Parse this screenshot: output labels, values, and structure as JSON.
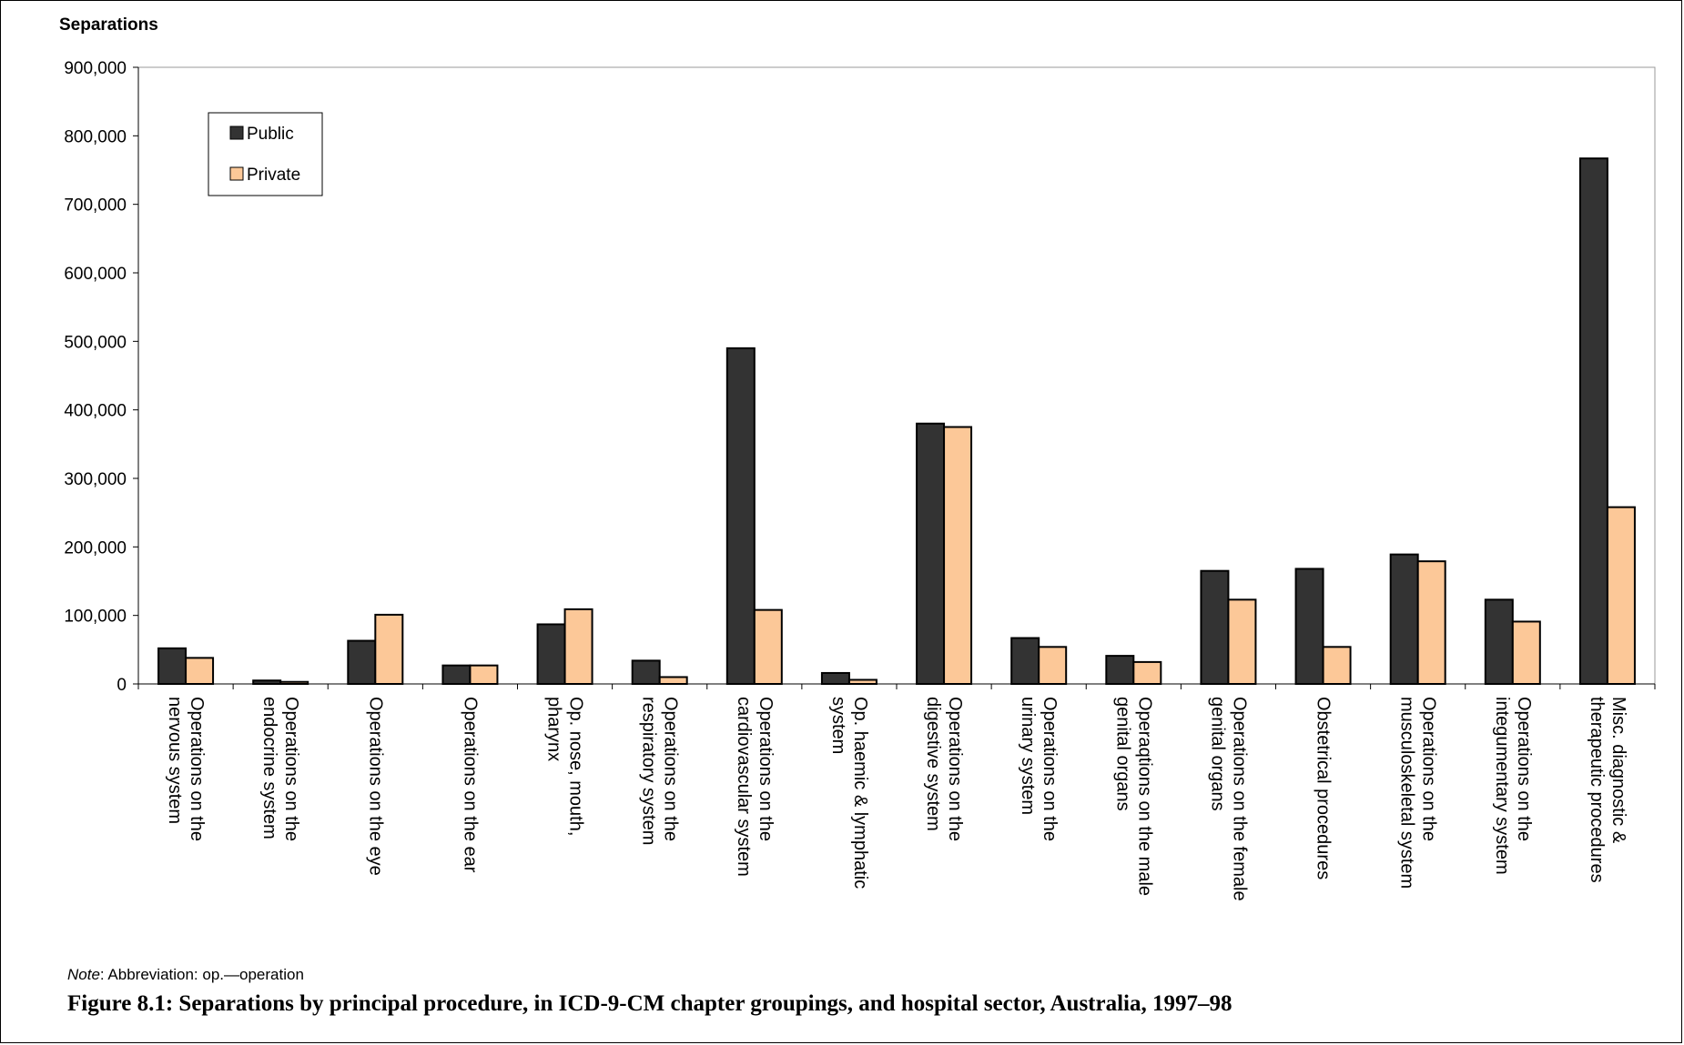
{
  "chart_data": {
    "type": "bar",
    "title": "",
    "ylabel": "Separations",
    "xlabel": "",
    "ylim": [
      0,
      900000
    ],
    "yticks": [
      "0",
      "100,000",
      "200,000",
      "300,000",
      "400,000",
      "500,000",
      "600,000",
      "700,000",
      "800,000",
      "900,000"
    ],
    "grid": false,
    "legend_position": "top-left",
    "categories": [
      [
        "Operations on the",
        "nervous system"
      ],
      [
        "Operations on the",
        "endocrine system"
      ],
      [
        "Operations on the eye"
      ],
      [
        "Operations on the ear"
      ],
      [
        "Op. nose, mouth,",
        "pharynx"
      ],
      [
        "Operations on the",
        "respiratory system"
      ],
      [
        "Operations on the",
        "cardiovascular system"
      ],
      [
        "Op. haemic & lymphatic",
        "system"
      ],
      [
        "Operations on the",
        "digestive system"
      ],
      [
        "Operations on the",
        "urinary system"
      ],
      [
        "Operaqtions on the male",
        "genital organs"
      ],
      [
        "Operations on the female",
        "genital organs"
      ],
      [
        "Obstetrical procedures"
      ],
      [
        "Operations on the",
        "musculoskeletal system"
      ],
      [
        "Operations on the",
        "integumentary system"
      ],
      [
        "Misc. diagnostic &",
        "therapeutic procedures"
      ]
    ],
    "series": [
      {
        "name": "Public",
        "color": "#333333",
        "values": [
          52000,
          5000,
          63000,
          27000,
          87000,
          34000,
          490000,
          16000,
          380000,
          67000,
          41000,
          165000,
          168000,
          189000,
          123000,
          767000
        ]
      },
      {
        "name": "Private",
        "color": "#fcc898",
        "values": [
          38000,
          3000,
          101000,
          27000,
          109000,
          10000,
          108000,
          6000,
          375000,
          54000,
          32000,
          123000,
          54000,
          179000,
          91000,
          258000
        ]
      }
    ]
  },
  "note": {
    "label": "Note",
    "text": ":  Abbreviation: op.—operation"
  },
  "caption": "Figure 8.1: Separations by principal procedure, in ICD-9-CM chapter groupings, and hospital sector, Australia, 1997–98"
}
